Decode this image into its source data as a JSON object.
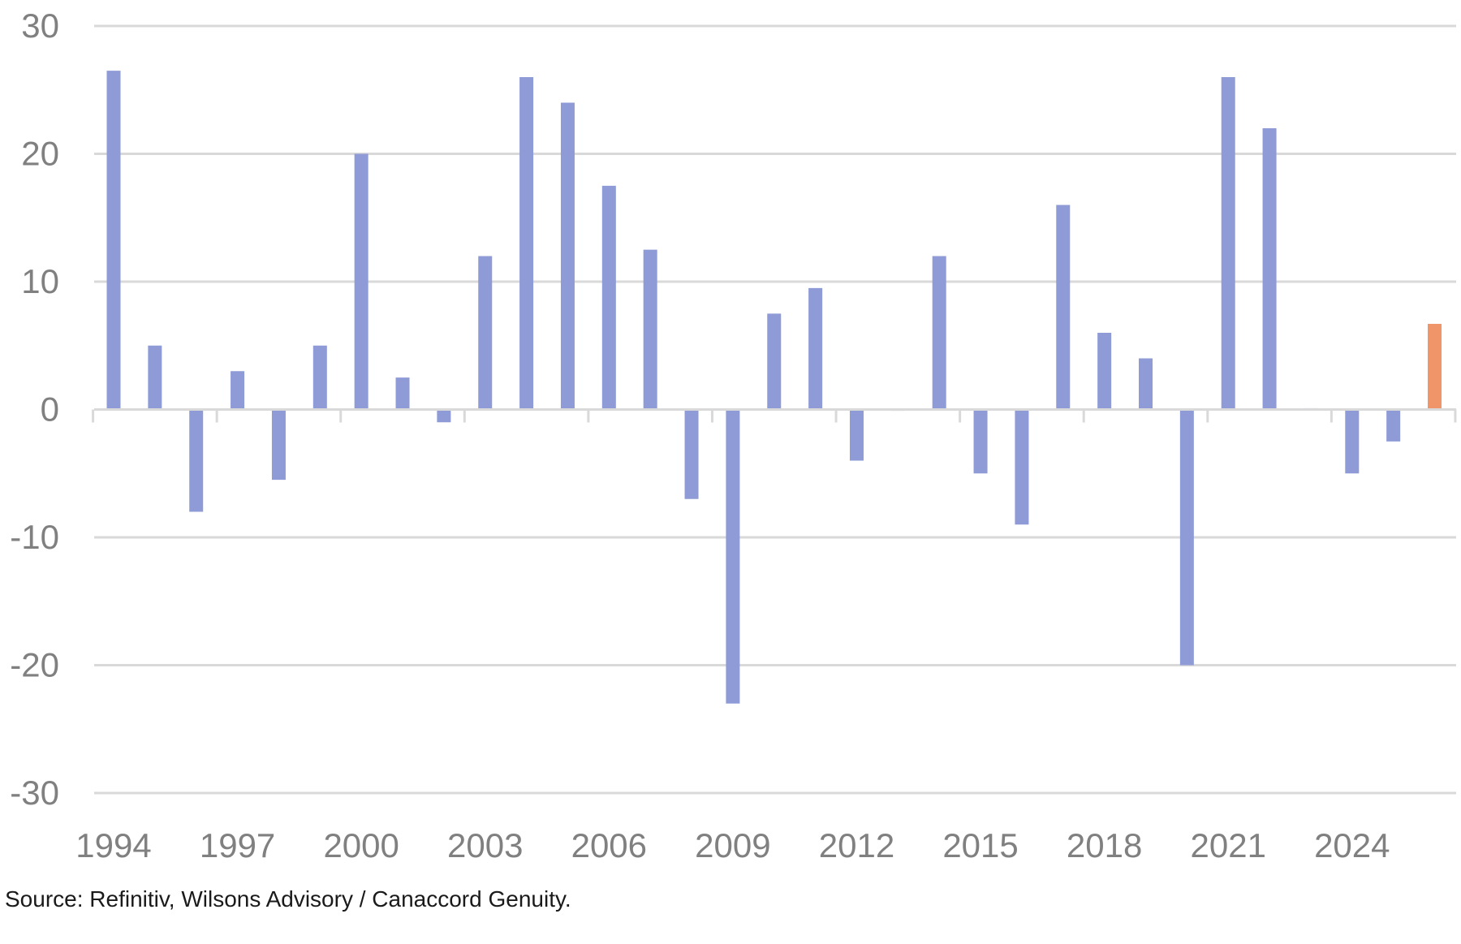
{
  "chart_data": {
    "type": "bar",
    "title": "",
    "xlabel": "",
    "ylabel": "",
    "ylim": [
      -30,
      30
    ],
    "yticks": [
      "30",
      "20",
      "10",
      "0",
      "-10",
      "-20",
      "-30"
    ],
    "xtick_labels": [
      "1994",
      "1997",
      "2000",
      "2003",
      "2006",
      "2009",
      "2012",
      "2015",
      "2018",
      "2021",
      "2024"
    ],
    "grid": "horizontal",
    "legend": "none",
    "categories": [
      "1994",
      "1995",
      "1996",
      "1997",
      "1998",
      "1999",
      "2000",
      "2001",
      "2002",
      "2003",
      "2004",
      "2005",
      "2006",
      "2007",
      "2008",
      "2009",
      "2010",
      "2011",
      "2012",
      "2013",
      "2014",
      "2015",
      "2016",
      "2017",
      "2018",
      "2019",
      "2020",
      "2021",
      "2022",
      "2023",
      "2024",
      "2025",
      "2026"
    ],
    "values": [
      26.5,
      5,
      -8,
      3,
      -5.5,
      5,
      20,
      2.5,
      -1,
      12,
      26,
      24,
      17.5,
      12.5,
      -7,
      -23,
      7.5,
      9.5,
      -4,
      -0.1,
      12,
      -5,
      -9,
      16,
      6,
      4,
      -20,
      26,
      22,
      0.1,
      -5,
      -2.5,
      6.7
    ],
    "colors": {
      "bar": "#8E9BD6",
      "highlight": "#F0956A",
      "grid": "#D9D9D9",
      "axis": "#D9D9D9"
    },
    "highlight_index": 32
  },
  "source": "Source: Refinitiv, Wilsons Advisory / Canaccord Genuity."
}
